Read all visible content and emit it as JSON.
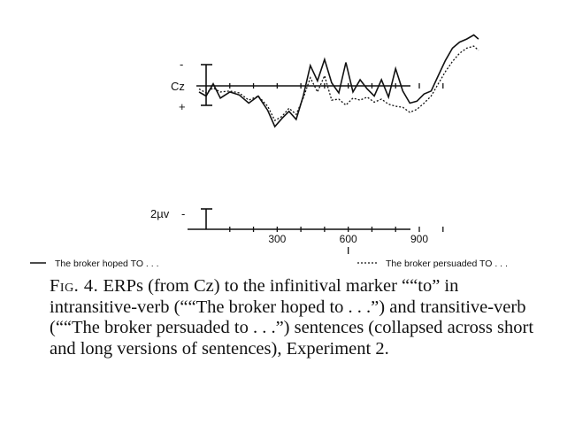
{
  "chart_data": {
    "type": "line",
    "electrode_label": "Cz",
    "polarity": {
      "negative_label": "-",
      "positive_label": "+"
    },
    "calibration_label": "2µv",
    "calibration_sign": "-",
    "x_tick_labels": [
      "300",
      "600",
      "900"
    ],
    "x_tick_values": [
      300,
      600,
      900
    ],
    "xlim": [
      -100,
      1150
    ],
    "ylim_uV": [
      -4.6,
      5.2
    ],
    "onset_marker_x": 600,
    "series": [
      {
        "name": "The broker hoped TO . . .",
        "style": "solid",
        "x": [
          -30,
          0,
          30,
          60,
          100,
          140,
          180,
          220,
          260,
          290,
          320,
          350,
          380,
          410,
          440,
          470,
          500,
          530,
          560,
          590,
          620,
          650,
          680,
          710,
          740,
          770,
          800,
          830,
          860,
          890,
          920,
          950,
          980,
          1010,
          1040,
          1070,
          1100,
          1130,
          1150
        ],
        "y": [
          -0.6,
          -1.0,
          0.2,
          -1.2,
          -0.6,
          -0.9,
          -1.7,
          -1.0,
          -2.4,
          -4.0,
          -3.2,
          -2.5,
          -3.3,
          -1.0,
          2.0,
          0.5,
          2.6,
          0.3,
          -0.7,
          2.3,
          -0.6,
          0.6,
          -0.3,
          -1.0,
          0.6,
          -1.1,
          1.7,
          -0.5,
          -1.7,
          -1.5,
          -0.8,
          -0.5,
          1.0,
          2.5,
          3.7,
          4.3,
          4.6,
          5.0,
          4.6
        ]
      },
      {
        "name": "The broker persuaded TO . . .",
        "style": "dotted",
        "x": [
          -30,
          0,
          30,
          60,
          100,
          140,
          180,
          220,
          260,
          290,
          320,
          350,
          380,
          410,
          440,
          470,
          500,
          530,
          560,
          590,
          620,
          650,
          680,
          710,
          740,
          770,
          800,
          830,
          860,
          890,
          920,
          950,
          980,
          1010,
          1040,
          1070,
          1100,
          1130,
          1150
        ],
        "y": [
          -0.3,
          -0.7,
          -0.2,
          -0.6,
          -0.5,
          -0.7,
          -1.4,
          -1.0,
          -2.0,
          -3.4,
          -3.0,
          -2.2,
          -2.8,
          -1.2,
          0.8,
          -0.6,
          1.0,
          -1.4,
          -1.3,
          -1.9,
          -1.2,
          -1.4,
          -1.1,
          -1.6,
          -1.3,
          -1.8,
          -2.0,
          -2.1,
          -2.6,
          -2.3,
          -1.7,
          -1.0,
          0.2,
          1.4,
          2.4,
          3.2,
          3.7,
          3.9,
          3.5
        ]
      }
    ],
    "legend_placement": "bottom",
    "grid": false
  },
  "caption": {
    "lead": "Fig. 4.",
    "text": " ERPs (from Cz) to the infinitival marker ““to” in intransitive-verb (““The broker hoped to . . .”) and transitive-verb (““The broker persuaded to . . .”) sentences (collapsed across short and long versions of sentences), Experiment 2."
  }
}
